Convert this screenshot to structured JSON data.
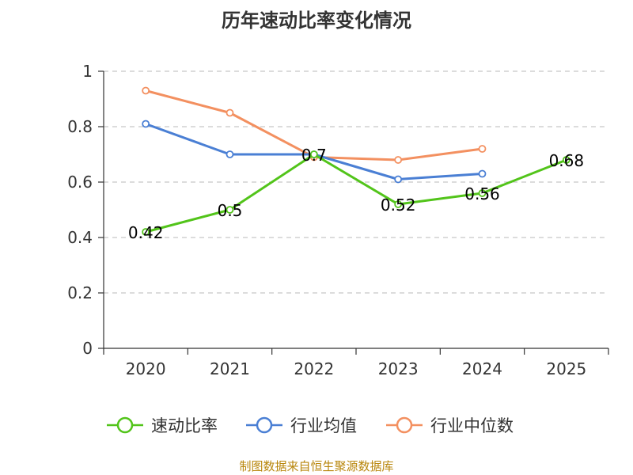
{
  "colors": {
    "series": [
      "#52c41a",
      "#4a7fd4",
      "#f39060"
    ],
    "grid": "#c8c8c8",
    "axis": "#333333",
    "source": "#b8860b"
  },
  "chart_data": {
    "type": "line",
    "title": "历年速动比率变化情况",
    "categories": [
      "2020",
      "2021",
      "2022",
      "2023",
      "2024",
      "2025"
    ],
    "ylim": [
      0,
      1
    ],
    "yticks": [
      "0",
      "0.2",
      "0.4",
      "0.6",
      "0.8",
      "1"
    ],
    "ytick_values": [
      0,
      0.2,
      0.4,
      0.6,
      0.8,
      1
    ],
    "grid": true,
    "legend_position": "bottom",
    "series": [
      {
        "name": "速动比率",
        "values": [
          0.42,
          0.5,
          0.7,
          0.52,
          0.56,
          0.68
        ],
        "labels": [
          "0.42",
          "0.5",
          "0.7",
          "0.52",
          "0.56",
          "0.68"
        ]
      },
      {
        "name": "行业均值",
        "values": [
          0.81,
          0.7,
          0.7,
          0.61,
          0.63,
          null
        ]
      },
      {
        "name": "行业中位数",
        "values": [
          0.93,
          0.85,
          0.69,
          0.68,
          0.72,
          null
        ]
      }
    ]
  },
  "footer": {
    "source": "制图数据来自恒生聚源数据库"
  }
}
